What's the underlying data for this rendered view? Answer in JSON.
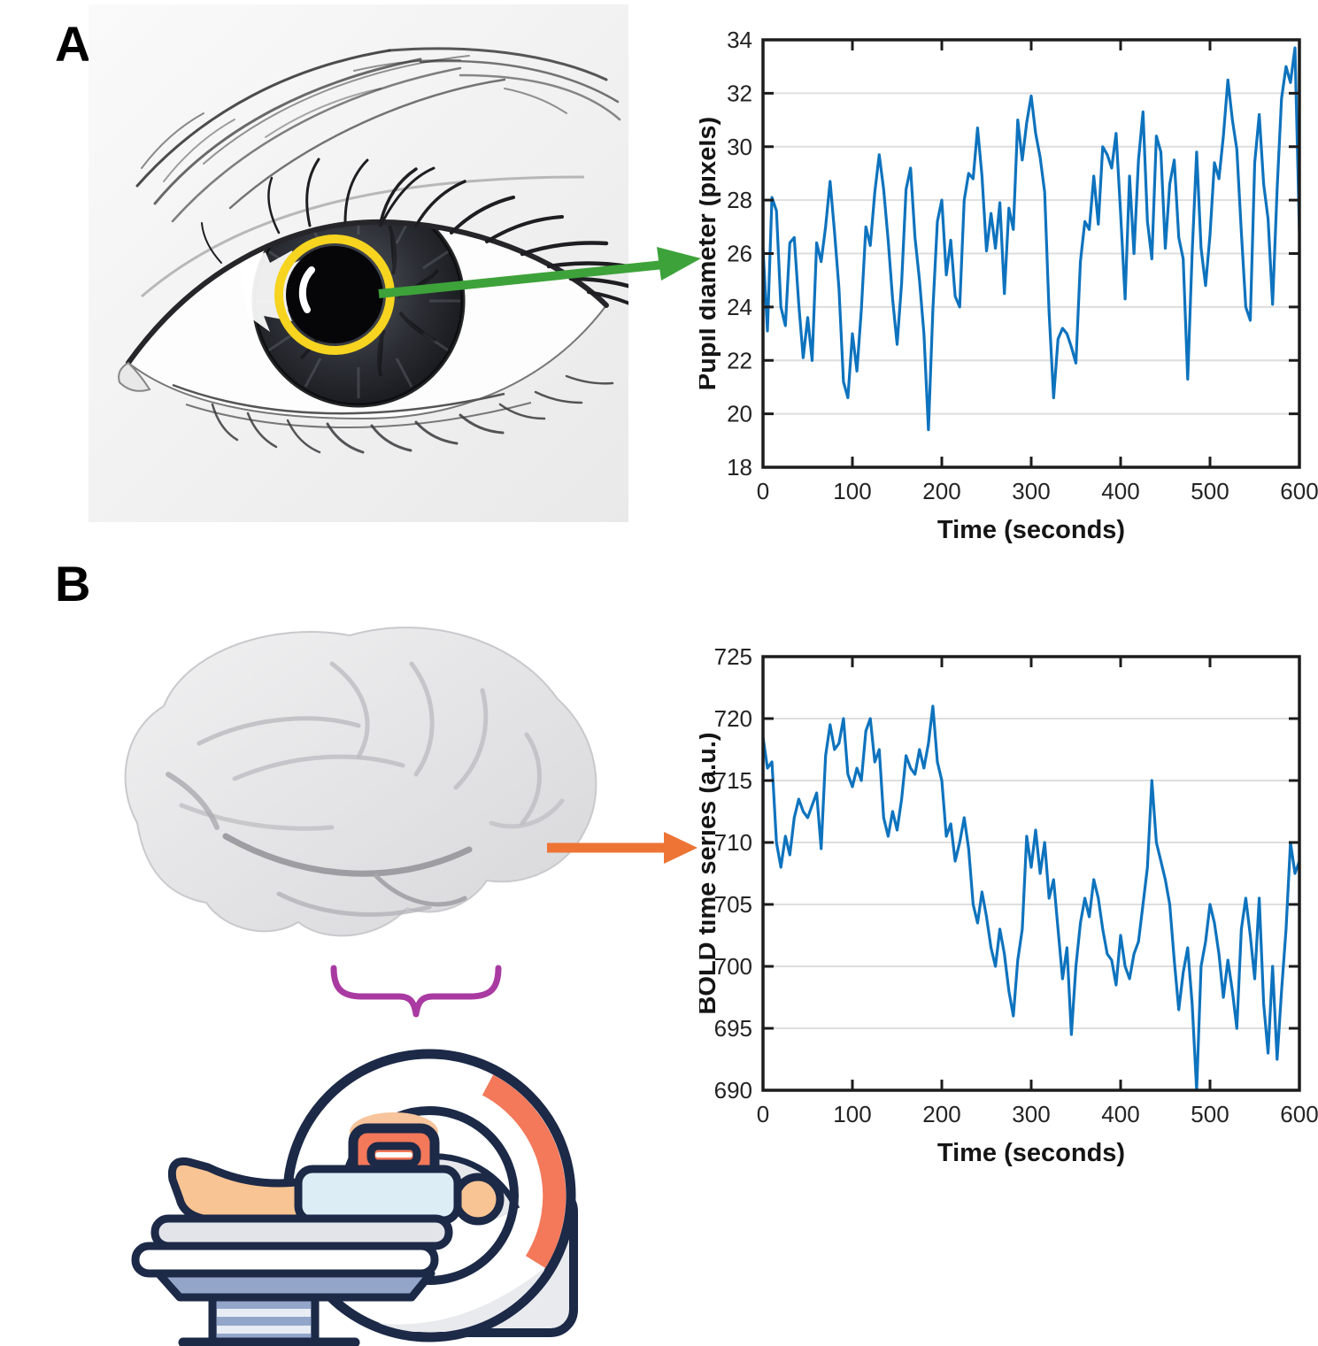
{
  "panels": {
    "a_label": "A",
    "b_label": "B"
  },
  "annotations": {
    "pupil_ring_color": "#F6D41F",
    "green_arrow_color": "#3DA23A",
    "orange_arrow_color": "#ED7434",
    "brace_color": "#A93AA2"
  },
  "mri_icon_colors": {
    "outline_navy": "#1C2947",
    "salmon": "#F4785A",
    "skin_peach": "#F8C493",
    "blanket_blue": "#DCEDF6",
    "table_bluegray": "#93A6C9",
    "light_gray": "#E6E8EC",
    "glow_orange": "#F7C49B"
  },
  "chart_data": [
    {
      "id": "pupil",
      "type": "line",
      "title": "",
      "xlabel": "Time (seconds)",
      "ylabel": "Pupil diameter (pixels)",
      "xlim": [
        0,
        600
      ],
      "ylim": [
        18,
        34
      ],
      "xticks": [
        0,
        100,
        200,
        300,
        400,
        500,
        600
      ],
      "yticks": [
        18,
        20,
        22,
        24,
        26,
        28,
        30,
        32,
        34
      ],
      "grid": "horizontal",
      "legend": "none",
      "line_color": "#0E73BE",
      "axis_color": "#1C1C1C",
      "grid_color": "#DEDEDE",
      "x_start": 0,
      "x_step": 5,
      "values": [
        26.2,
        23.1,
        28.1,
        27.6,
        24.0,
        23.3,
        26.4,
        26.6,
        24.1,
        22.1,
        23.6,
        22.0,
        26.4,
        25.7,
        27.0,
        28.7,
        26.8,
        24.7,
        21.2,
        20.6,
        23.0,
        21.6,
        23.9,
        27.0,
        26.3,
        28.3,
        29.7,
        28.4,
        26.5,
        24.3,
        22.6,
        24.9,
        28.4,
        29.2,
        26.6,
        25.0,
        23.0,
        19.4,
        23.9,
        27.2,
        28.0,
        25.2,
        26.5,
        24.4,
        24.0,
        28.0,
        29.0,
        28.8,
        30.7,
        28.9,
        26.1,
        27.5,
        26.2,
        27.9,
        24.5,
        27.7,
        26.9,
        31.0,
        29.5,
        30.9,
        31.9,
        30.5,
        29.6,
        28.3,
        23.8,
        20.6,
        22.8,
        23.2,
        23.0,
        22.5,
        21.9,
        25.7,
        27.2,
        26.9,
        28.9,
        27.1,
        30.0,
        29.7,
        29.2,
        30.5,
        27.5,
        24.3,
        28.9,
        26.0,
        29.5,
        31.3,
        27.2,
        25.8,
        30.4,
        29.8,
        26.2,
        28.6,
        29.5,
        26.6,
        25.8,
        21.3,
        26.0,
        29.8,
        26.2,
        24.8,
        26.7,
        29.4,
        28.8,
        30.4,
        32.5,
        31.0,
        29.9,
        26.8,
        24.0,
        23.5,
        29.4,
        31.2,
        28.6,
        27.3,
        24.1,
        28.4,
        31.8,
        33.0,
        32.4,
        33.7,
        26.8
      ]
    },
    {
      "id": "bold",
      "type": "line",
      "title": "",
      "xlabel": "Time (seconds)",
      "ylabel": "BOLD time series (a.u.)",
      "xlim": [
        0,
        600
      ],
      "ylim": [
        690,
        725
      ],
      "xticks": [
        0,
        100,
        200,
        300,
        400,
        500,
        600
      ],
      "yticks": [
        690,
        695,
        700,
        705,
        710,
        715,
        720,
        725
      ],
      "grid": "horizontal",
      "legend": "none",
      "line_color": "#0E73BE",
      "axis_color": "#1C1C1C",
      "grid_color": "#DEDEDE",
      "x_start": 0,
      "x_step": 5,
      "values": [
        718.5,
        716.0,
        716.5,
        710.0,
        708.0,
        710.5,
        709.0,
        712.0,
        713.5,
        712.5,
        712.0,
        713.0,
        714.0,
        709.5,
        717.0,
        719.5,
        717.5,
        718.0,
        720.0,
        715.5,
        714.5,
        716.0,
        715.0,
        719.0,
        720.0,
        716.5,
        717.5,
        712.0,
        710.5,
        712.5,
        711.0,
        713.5,
        717.0,
        716.0,
        715.5,
        717.5,
        716.0,
        718.0,
        721.0,
        716.5,
        715.0,
        710.5,
        711.5,
        708.5,
        710.0,
        712.0,
        709.5,
        705.0,
        703.5,
        706.0,
        704.0,
        701.5,
        700.0,
        703.0,
        701.0,
        698.0,
        696.0,
        700.5,
        703.0,
        710.5,
        708.0,
        711.0,
        707.5,
        710.0,
        705.5,
        707.0,
        703.0,
        699.0,
        701.5,
        694.5,
        700.0,
        703.5,
        705.5,
        704.0,
        707.0,
        705.5,
        703.0,
        701.0,
        700.5,
        698.5,
        702.5,
        700.0,
        699.0,
        701.0,
        702.0,
        705.0,
        708.0,
        715.0,
        710.0,
        708.5,
        707.0,
        705.0,
        700.5,
        696.5,
        699.5,
        701.5,
        697.0,
        690.0,
        700.0,
        702.0,
        705.0,
        703.5,
        701.0,
        697.5,
        700.5,
        698.0,
        695.0,
        703.0,
        705.5,
        702.5,
        699.0,
        705.5,
        697.0,
        693.0,
        700.0,
        692.5,
        698.0,
        703.0,
        710.0,
        707.5,
        708.5
      ]
    }
  ]
}
